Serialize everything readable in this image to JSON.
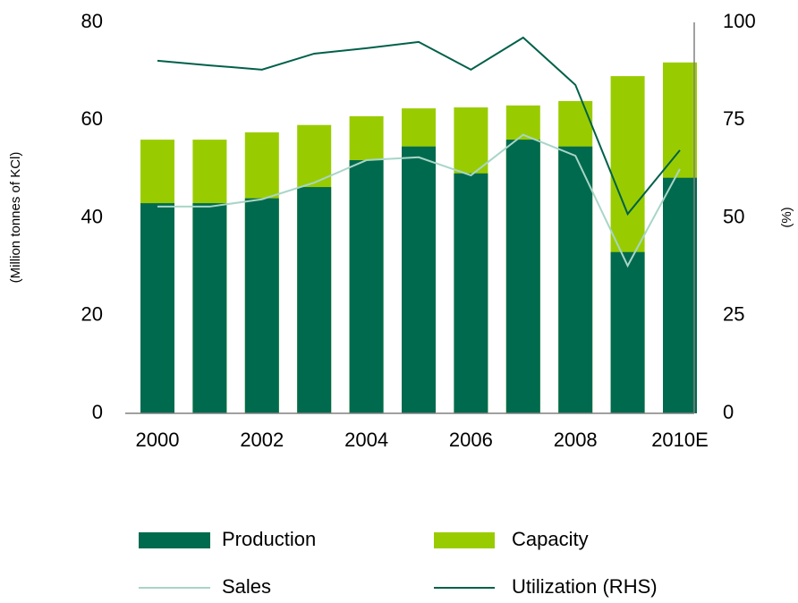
{
  "chart_data": {
    "type": "bar",
    "ylabel": "(Million tonnes of KCl)",
    "y2label": "(%)",
    "categories": [
      "2000",
      null,
      "2002",
      null,
      "2004",
      null,
      "2006",
      null,
      "2008",
      null,
      "2010E"
    ],
    "series": [
      {
        "name": "Capacity",
        "type": "bar",
        "color": "#99cc00",
        "values": [
          56,
          56,
          57.5,
          59,
          60.8,
          62.4,
          62.6,
          63,
          63.9,
          69,
          71.8
        ]
      },
      {
        "name": "Production",
        "type": "bar",
        "color": "#006a4e",
        "values": [
          43,
          43,
          44,
          46.3,
          51.8,
          54.6,
          49.1,
          56,
          54.6,
          33,
          48.2
        ]
      },
      {
        "name": "Sales",
        "type": "line",
        "color": "#a8d5c8",
        "values": [
          42.3,
          42.3,
          43.8,
          47.2,
          51.8,
          52.4,
          48.7,
          57,
          52.7,
          30.2,
          50
        ]
      },
      {
        "name": "Utilization (RHS)",
        "type": "line",
        "axis": "y2",
        "color": "#00604a",
        "values": [
          90.2,
          89,
          87.9,
          92,
          93.4,
          95,
          87.9,
          96.1,
          84,
          51,
          67.3
        ]
      }
    ],
    "ylim": [
      0,
      80
    ],
    "yticks": [
      0,
      20,
      40,
      60,
      80
    ],
    "y2lim": [
      0,
      100
    ],
    "y2ticks": [
      0,
      25,
      50,
      75,
      100
    ]
  }
}
